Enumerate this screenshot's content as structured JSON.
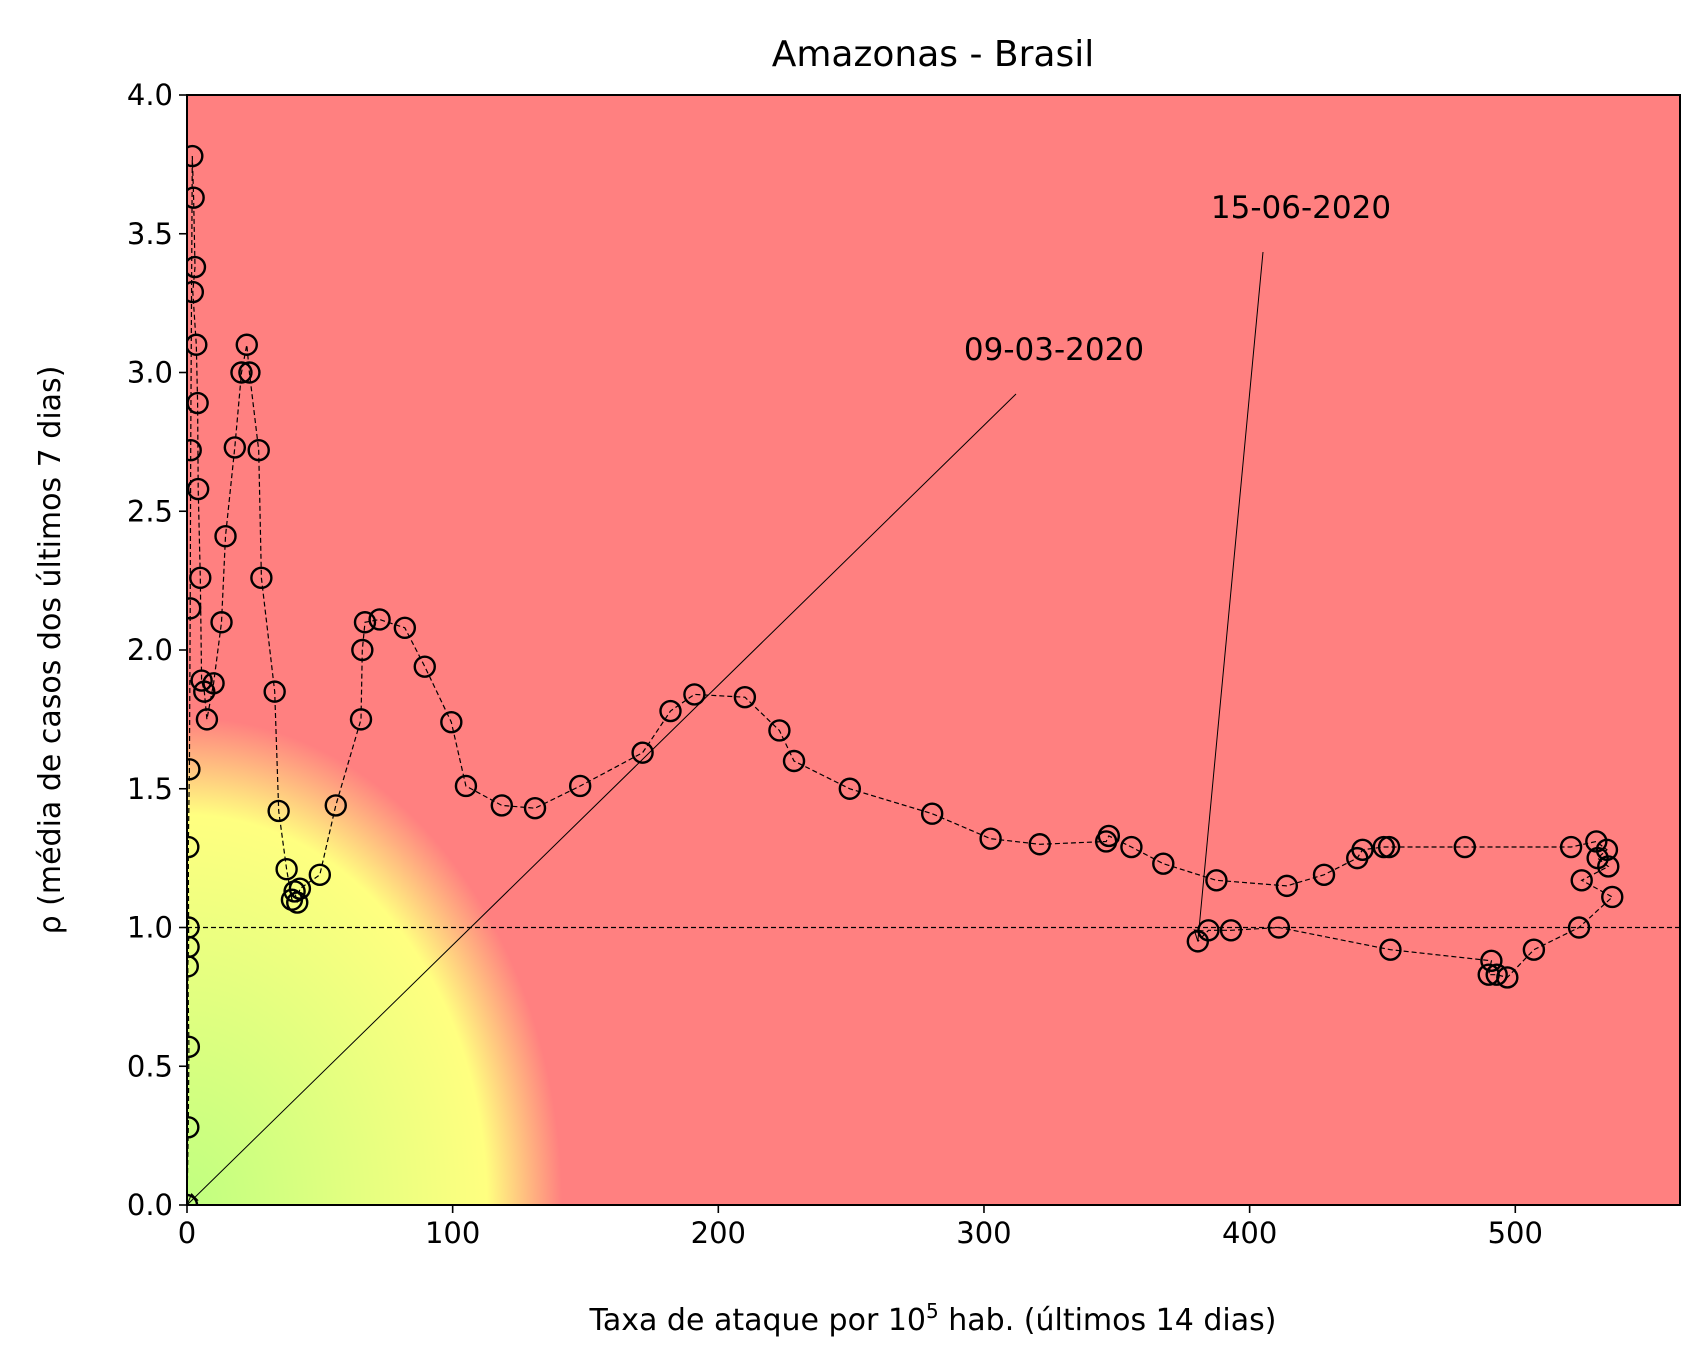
{
  "chart_data": {
    "type": "scatter",
    "title": "Amazonas - Brasil",
    "xlabel_main": "Taxa de ataque por 10",
    "xlabel_sup": "5",
    "xlabel_rest": " hab. (últimos 14 dias)",
    "ylabel": "ρ (média de casos dos últimos 7 dias)",
    "xlim": [
      0,
      562
    ],
    "ylim": [
      0,
      4
    ],
    "xticks": [
      0,
      100,
      200,
      300,
      400,
      500
    ],
    "yticks": [
      0.0,
      0.5,
      1.0,
      1.5,
      2.0,
      2.5,
      3.0,
      3.5,
      4.0
    ],
    "reference_line_y": 1.0,
    "background": {
      "description": "risk gradient",
      "low_color": "#c0ff80",
      "mid_color": "#ffff80",
      "high_color": "#ff8080"
    },
    "marker_color": "#000000",
    "series": [
      {
        "points": [
          [
            0.0,
            0.0
          ],
          [
            0.5,
            0.28
          ],
          [
            0.7,
            0.57
          ],
          [
            0.3,
            0.86
          ],
          [
            0.6,
            0.93
          ],
          [
            0.6,
            1.0
          ],
          [
            0.5,
            1.29
          ],
          [
            0.9,
            1.57
          ],
          [
            1.2,
            2.15
          ],
          [
            1.4,
            2.72
          ],
          [
            2.0,
            3.78
          ],
          [
            2.5,
            3.63
          ],
          [
            3.0,
            3.38
          ],
          [
            2.2,
            3.29
          ],
          [
            3.5,
            3.1
          ],
          [
            4.0,
            2.89
          ],
          [
            4.2,
            2.58
          ],
          [
            5.0,
            2.26
          ],
          [
            5.5,
            1.89
          ],
          [
            6.5,
            1.85
          ],
          [
            7.5,
            1.75
          ],
          [
            10.0,
            1.88
          ],
          [
            13.0,
            2.1
          ],
          [
            14.5,
            2.41
          ],
          [
            18.0,
            2.73
          ],
          [
            20.5,
            3.0
          ],
          [
            22.5,
            3.1
          ],
          [
            23.5,
            3.0
          ],
          [
            27.0,
            2.72
          ],
          [
            28.0,
            2.26
          ],
          [
            33.0,
            1.85
          ],
          [
            34.5,
            1.42
          ],
          [
            37.5,
            1.21
          ],
          [
            39.5,
            1.1
          ],
          [
            40.5,
            1.13
          ],
          [
            41.5,
            1.09
          ],
          [
            42.5,
            1.14
          ],
          [
            50.0,
            1.19
          ],
          [
            56.0,
            1.44
          ],
          [
            65.5,
            1.75
          ],
          [
            66.0,
            2.0
          ],
          [
            67.0,
            2.1
          ],
          [
            72.5,
            2.11
          ],
          [
            82.0,
            2.08
          ],
          [
            89.5,
            1.94
          ],
          [
            99.5,
            1.74
          ],
          [
            105.0,
            1.51
          ],
          [
            118.5,
            1.44
          ],
          [
            131.0,
            1.43
          ],
          [
            148.0,
            1.51
          ],
          [
            171.5,
            1.63
          ],
          [
            182.0,
            1.78
          ],
          [
            191.0,
            1.84
          ],
          [
            210.0,
            1.83
          ],
          [
            223.0,
            1.71
          ],
          [
            228.5,
            1.6
          ],
          [
            249.5,
            1.5
          ],
          [
            280.5,
            1.41
          ],
          [
            302.5,
            1.32
          ],
          [
            321.0,
            1.3
          ],
          [
            346.0,
            1.31
          ],
          [
            347.0,
            1.33
          ],
          [
            355.5,
            1.29
          ],
          [
            367.5,
            1.23
          ],
          [
            387.5,
            1.17
          ],
          [
            414.0,
            1.15
          ],
          [
            428.0,
            1.19
          ],
          [
            440.5,
            1.25
          ],
          [
            442.5,
            1.28
          ],
          [
            450.5,
            1.29
          ],
          [
            452.5,
            1.29
          ],
          [
            481.0,
            1.29
          ],
          [
            521.0,
            1.29
          ],
          [
            530.5,
            1.31
          ],
          [
            534.5,
            1.28
          ],
          [
            531.0,
            1.25
          ],
          [
            535.0,
            1.22
          ],
          [
            525.0,
            1.17
          ],
          [
            536.5,
            1.11
          ],
          [
            524.0,
            1.0
          ],
          [
            507.0,
            0.92
          ],
          [
            497.0,
            0.82
          ],
          [
            493.0,
            0.83
          ],
          [
            490.0,
            0.83
          ],
          [
            491.0,
            0.88
          ],
          [
            453.0,
            0.92
          ],
          [
            411.0,
            1.0
          ],
          [
            393.0,
            0.99
          ],
          [
            384.5,
            0.99
          ],
          [
            380.5,
            0.95
          ]
        ]
      }
    ],
    "annotations": [
      {
        "text": "09-03-2020",
        "point": [
          0.0,
          0.0
        ]
      },
      {
        "text": "15-06-2020",
        "point": [
          380.5,
          0.95
        ]
      }
    ]
  }
}
